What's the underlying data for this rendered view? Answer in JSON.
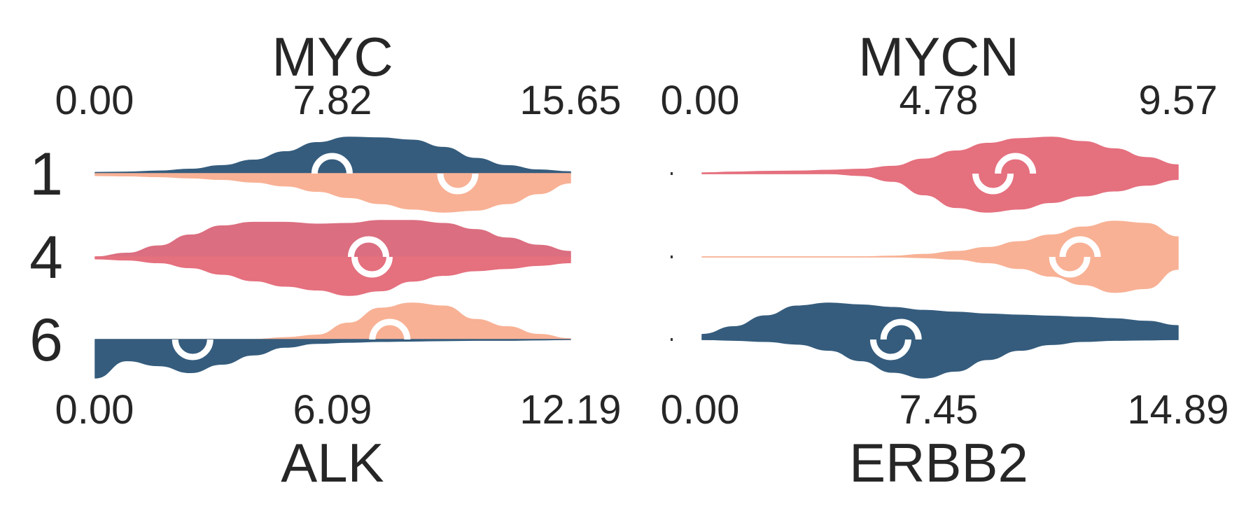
{
  "chart_data": {
    "type": "split-violin",
    "rows": [
      "1",
      "4",
      "6"
    ],
    "colors": {
      "navy": "#355c7d",
      "peach": "#f8b195",
      "rose": "#e5707e",
      "rose_dark": "#db6e80",
      "median_marker": "#ffffff",
      "text": "#262626"
    },
    "panels": [
      {
        "name": "left",
        "top": {
          "gene": "MYC",
          "axis_ticks": [
            "0.00",
            "7.82",
            "15.65"
          ],
          "xlim": [
            0,
            15.65
          ],
          "rows": [
            {
              "row": "1",
              "color": "navy",
              "median": 7.8,
              "grid_max": 15.65,
              "density": [
                0.03,
                0.04,
                0.07,
                0.12,
                0.22,
                0.37,
                0.6,
                0.85,
                1.0,
                0.98,
                0.92,
                0.72,
                0.42,
                0.22,
                0.1,
                0.05
              ]
            },
            {
              "row": "4",
              "color": "rose_dark",
              "median": 9.0,
              "grid_max": 15.65,
              "density": [
                0.0,
                0.1,
                0.3,
                0.6,
                0.85,
                0.95,
                0.95,
                0.9,
                0.92,
                1.0,
                1.0,
                0.92,
                0.75,
                0.52,
                0.32,
                0.15
              ]
            },
            {
              "row": "6",
              "color": "peach",
              "median": 9.7,
              "grid_max": 15.65,
              "density": [
                0.0,
                0.0,
                0.0,
                0.0,
                0.0,
                0.0,
                0.05,
                0.12,
                0.45,
                0.86,
                1.0,
                0.92,
                0.55,
                0.35,
                0.14,
                0.02
              ]
            }
          ]
        },
        "bottom": {
          "gene": "ALK",
          "axis_ticks": [
            "0.00",
            "6.09",
            "12.19"
          ],
          "xlim": [
            0,
            12.19
          ],
          "rows": [
            {
              "row": "1",
              "color": "peach",
              "median": 9.3,
              "grid_max": 12.19,
              "density": [
                0.05,
                0.06,
                0.08,
                0.11,
                0.15,
                0.22,
                0.32,
                0.46,
                0.62,
                0.78,
                0.92,
                1.0,
                0.95,
                0.78,
                0.52,
                0.24
              ]
            },
            {
              "row": "4",
              "color": "rose",
              "median": 7.1,
              "grid_max": 12.19,
              "density": [
                0.05,
                0.08,
                0.15,
                0.28,
                0.45,
                0.62,
                0.76,
                0.86,
                1.0,
                0.88,
                0.63,
                0.48,
                0.36,
                0.3,
                0.22,
                0.15
              ]
            },
            {
              "row": "6",
              "color": "navy",
              "median": 2.5,
              "grid_max": 12.19,
              "density": [
                1.0,
                0.55,
                0.68,
                0.86,
                0.64,
                0.4,
                0.2,
                0.1,
                0.07,
                0.05,
                0.04,
                0.03,
                0.02,
                0.02,
                0.01,
                0.0
              ]
            }
          ]
        }
      },
      {
        "name": "right",
        "top": {
          "gene": "MYCN",
          "axis_ticks": [
            "0.00",
            "4.78",
            "9.57"
          ],
          "xlim": [
            0,
            9.57
          ],
          "rows": [
            {
              "row": "1",
              "color": "rose",
              "median": 6.3,
              "grid_max": 9.57,
              "density": [
                0.02,
                0.04,
                0.06,
                0.07,
                0.09,
                0.12,
                0.2,
                0.4,
                0.62,
                0.83,
                0.96,
                1.0,
                0.88,
                0.68,
                0.44,
                0.24
              ]
            },
            {
              "row": "4",
              "color": "peach",
              "median": 7.6,
              "grid_max": 9.57,
              "density": [
                0.0,
                0.0,
                0.0,
                0.0,
                0.0,
                0.0,
                0.02,
                0.07,
                0.15,
                0.26,
                0.42,
                0.6,
                0.82,
                0.98,
                0.92,
                0.55
              ]
            },
            {
              "row": "6",
              "color": "navy",
              "median": 4.0,
              "grid_max": 9.57,
              "density": [
                0.14,
                0.35,
                0.65,
                0.92,
                1.0,
                0.95,
                0.88,
                0.8,
                0.75,
                0.7,
                0.67,
                0.64,
                0.61,
                0.57,
                0.5,
                0.38
              ]
            }
          ]
        },
        "bottom": {
          "gene": "ERBB2",
          "axis_ticks": [
            "0.00",
            "7.45",
            "14.89"
          ],
          "xlim": [
            0,
            14.89
          ],
          "rows": [
            {
              "row": "1",
              "color": "rose",
              "median": 9.1,
              "grid_max": 14.89,
              "density": [
                0.0,
                0.0,
                0.0,
                0.0,
                0.0,
                0.05,
                0.2,
                0.55,
                0.88,
                1.0,
                0.92,
                0.75,
                0.58,
                0.45,
                0.3,
                0.15
              ]
            },
            {
              "row": "4",
              "color": "peach",
              "median": 11.5,
              "grid_max": 14.89,
              "density": [
                0.0,
                0.0,
                0.0,
                0.0,
                0.0,
                0.0,
                0.0,
                0.02,
                0.06,
                0.15,
                0.3,
                0.5,
                0.72,
                0.92,
                0.82,
                0.32
              ]
            },
            {
              "row": "6",
              "color": "navy",
              "median": 5.9,
              "grid_max": 14.89,
              "density": [
                0.0,
                0.02,
                0.05,
                0.12,
                0.28,
                0.55,
                0.85,
                1.0,
                0.82,
                0.52,
                0.28,
                0.13,
                0.05,
                0.02,
                0.01,
                0.0
              ]
            }
          ]
        }
      }
    ]
  }
}
